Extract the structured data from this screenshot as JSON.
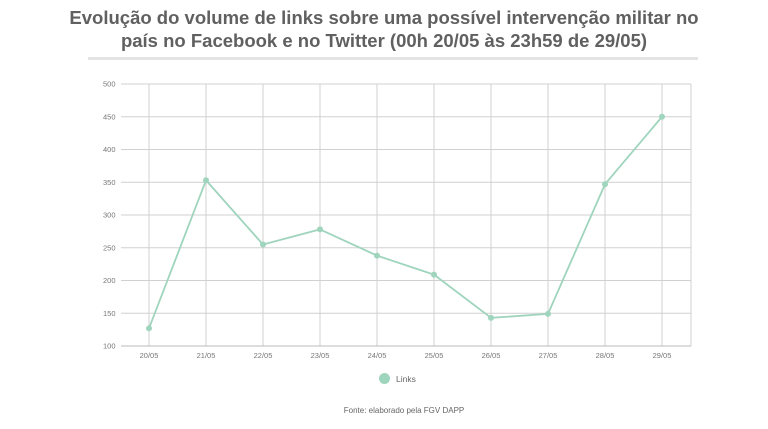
{
  "title_lines": [
    "Evolução do volume de links sobre uma possível intervenção militar no",
    "país no Facebook e no Twitter (00h 20/05 às 23h59 de 29/05)"
  ],
  "source": "Fonte: elaborado pela FGV DAPP",
  "colors": {
    "series": "#9fd4bd",
    "grid": "#d0d0d0",
    "title": "#606060"
  },
  "chart_data": {
    "type": "line",
    "title": "Evolução do volume de links sobre uma possível intervenção militar no país no Facebook e no Twitter (00h 20/05 às 23h59 de 29/05)",
    "xlabel": "",
    "ylabel": "",
    "categories": [
      "20/05",
      "21/05",
      "22/05",
      "23/05",
      "24/05",
      "25/05",
      "26/05",
      "27/05",
      "28/05",
      "29/05"
    ],
    "yticks": [
      100,
      150,
      200,
      250,
      300,
      350,
      400,
      450,
      500
    ],
    "ylim": [
      100,
      500
    ],
    "grid": true,
    "legend": "bottom",
    "series": [
      {
        "name": "Links",
        "values": [
          127,
          353,
          255,
          278,
          238,
          209,
          143,
          149,
          347,
          450
        ]
      }
    ]
  }
}
